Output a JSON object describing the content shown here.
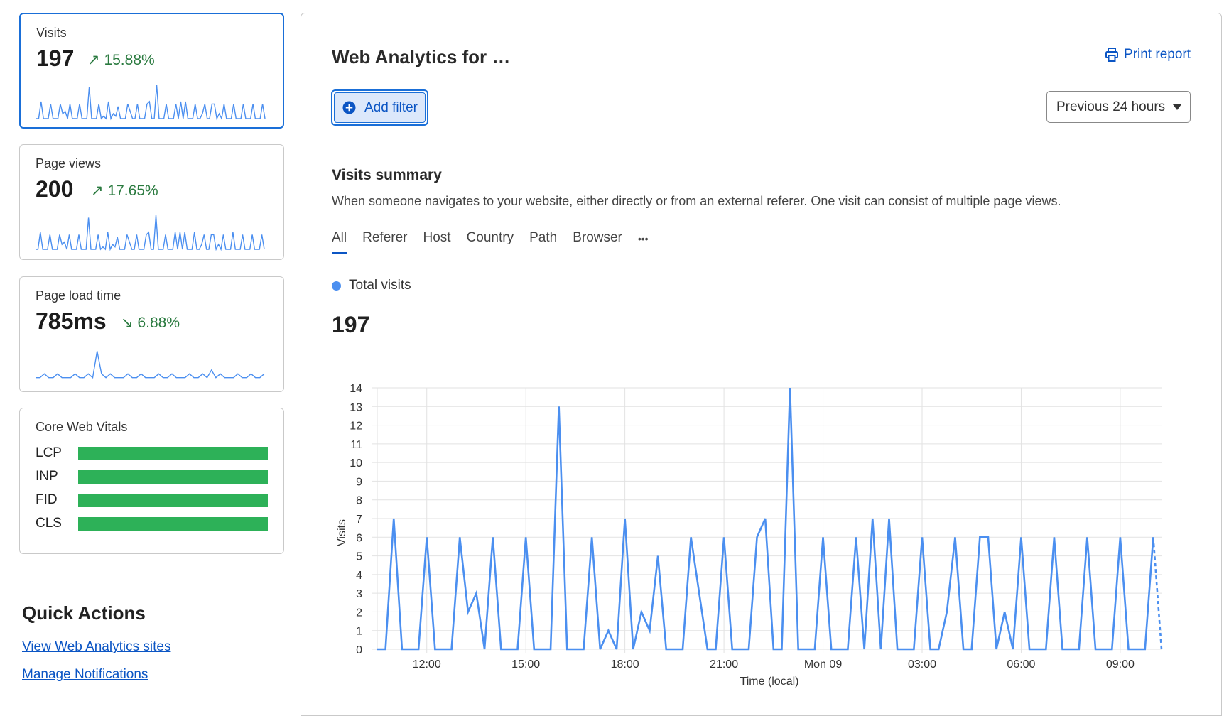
{
  "sidebar": {
    "visits": {
      "label": "Visits",
      "value": "197",
      "change": "15.88%",
      "trend": "up",
      "arrow": "↗"
    },
    "page_views": {
      "label": "Page views",
      "value": "200",
      "change": "17.65%",
      "trend": "up",
      "arrow": "↗"
    },
    "page_load": {
      "label": "Page load time",
      "value": "785ms",
      "change": "6.88%",
      "trend": "down",
      "arrow": "↘",
      "spark": [
        1,
        1,
        2,
        1,
        1,
        2,
        1,
        1,
        1,
        2,
        1,
        1,
        2,
        1,
        8,
        2,
        1,
        2,
        1,
        1,
        1,
        2,
        1,
        1,
        2,
        1,
        1,
        1,
        2,
        1,
        1,
        2,
        1,
        1,
        1,
        2,
        1,
        1,
        2,
        1,
        3,
        1,
        2,
        1,
        1,
        1,
        2,
        1,
        1,
        2,
        1,
        1,
        2
      ]
    },
    "cwv": {
      "title": "Core Web Vitals",
      "metrics": [
        {
          "name": "LCP",
          "good": 1.0
        },
        {
          "name": "INP",
          "good": 1.0
        },
        {
          "name": "FID",
          "good": 1.0
        },
        {
          "name": "CLS",
          "good": 1.0
        }
      ]
    },
    "quick_actions": {
      "title": "Quick Actions",
      "links": [
        "View Web Analytics sites",
        "Manage Notifications"
      ]
    }
  },
  "main": {
    "title": "Web Analytics for …",
    "print": "Print report",
    "add_filter": "Add filter",
    "range": "Previous 24 hours",
    "summary_title": "Visits summary",
    "summary_desc": "When someone navigates to your website, either directly or from an external referer. One visit can consist of multiple page views.",
    "tabs": [
      "All",
      "Referer",
      "Host",
      "Country",
      "Path",
      "Browser",
      "•••"
    ],
    "legend": "Total visits",
    "total": "197"
  },
  "colors": {
    "accent": "#0b55c4",
    "series": "#4b8ff0",
    "good": "#2db158",
    "positive": "#2a7a3f"
  },
  "chart_data": {
    "type": "line",
    "xlabel": "Time (local)",
    "ylabel": "Visits",
    "ylim": [
      0,
      14
    ],
    "yticks": [
      0,
      1,
      2,
      3,
      4,
      5,
      6,
      7,
      8,
      9,
      10,
      11,
      12,
      13,
      14
    ],
    "xticks": [
      {
        "at": "12:00",
        "label": "12:00"
      },
      {
        "at": "15:00",
        "label": "15:00"
      },
      {
        "at": "18:00",
        "label": "18:00"
      },
      {
        "at": "21:00",
        "label": "21:00"
      },
      {
        "at": "Mon 00:00",
        "label": "Mon 09"
      },
      {
        "at": "Mon 03:00",
        "label": "03:00"
      },
      {
        "at": "Mon 06:00",
        "label": "06:00"
      },
      {
        "at": "Mon 09:00",
        "label": "09:00"
      }
    ],
    "grid": true,
    "last_segment": "dashed",
    "x": [
      "10:30",
      "10:45",
      "11:00",
      "11:15",
      "11:30",
      "11:45",
      "12:00",
      "12:15",
      "12:30",
      "12:45",
      "13:00",
      "13:15",
      "13:30",
      "13:45",
      "14:00",
      "14:15",
      "14:30",
      "14:45",
      "15:00",
      "15:15",
      "15:30",
      "15:45",
      "16:00",
      "16:15",
      "16:30",
      "16:45",
      "17:00",
      "17:15",
      "17:30",
      "17:45",
      "18:00",
      "18:15",
      "18:30",
      "18:45",
      "19:00",
      "19:15",
      "19:30",
      "19:45",
      "20:00",
      "20:15",
      "20:30",
      "20:45",
      "21:00",
      "21:15",
      "21:30",
      "21:45",
      "22:00",
      "22:15",
      "22:30",
      "22:45",
      "23:00",
      "23:15",
      "23:30",
      "23:45",
      "Mon 00:00",
      "Mon 00:15",
      "Mon 00:30",
      "Mon 00:45",
      "Mon 01:00",
      "Mon 01:15",
      "Mon 01:30",
      "Mon 01:45",
      "Mon 02:00",
      "Mon 02:15",
      "Mon 02:30",
      "Mon 02:45",
      "Mon 03:00",
      "Mon 03:15",
      "Mon 03:30",
      "Mon 03:45",
      "Mon 04:00",
      "Mon 04:15",
      "Mon 04:30",
      "Mon 04:45",
      "Mon 05:00",
      "Mon 05:15",
      "Mon 05:30",
      "Mon 05:45",
      "Mon 06:00",
      "Mon 06:15",
      "Mon 06:30",
      "Mon 06:45",
      "Mon 07:00",
      "Mon 07:15",
      "Mon 07:30",
      "Mon 07:45",
      "Mon 08:00",
      "Mon 08:15",
      "Mon 08:30",
      "Mon 08:45",
      "Mon 09:00",
      "Mon 09:15",
      "Mon 09:30",
      "Mon 09:45",
      "Mon 10:00",
      "Mon 10:15"
    ],
    "series": [
      {
        "name": "Total visits",
        "values": [
          0,
          0,
          7,
          0,
          0,
          0,
          6,
          0,
          0,
          0,
          6,
          2,
          3,
          0,
          6,
          0,
          0,
          0,
          6,
          0,
          0,
          0,
          13,
          0,
          0,
          0,
          6,
          0,
          1,
          0,
          7,
          0,
          2,
          1,
          5,
          0,
          0,
          0,
          6,
          3,
          0,
          0,
          6,
          0,
          0,
          0,
          6,
          7,
          0,
          0,
          14,
          0,
          0,
          0,
          6,
          0,
          0,
          0,
          6,
          0,
          7,
          0,
          7,
          0,
          0,
          0,
          6,
          0,
          0,
          2,
          6,
          0,
          0,
          6,
          6,
          0,
          2,
          0,
          6,
          0,
          0,
          0,
          6,
          0,
          0,
          0,
          6,
          0,
          0,
          0,
          6,
          0,
          0,
          0,
          6,
          0
        ]
      }
    ]
  }
}
